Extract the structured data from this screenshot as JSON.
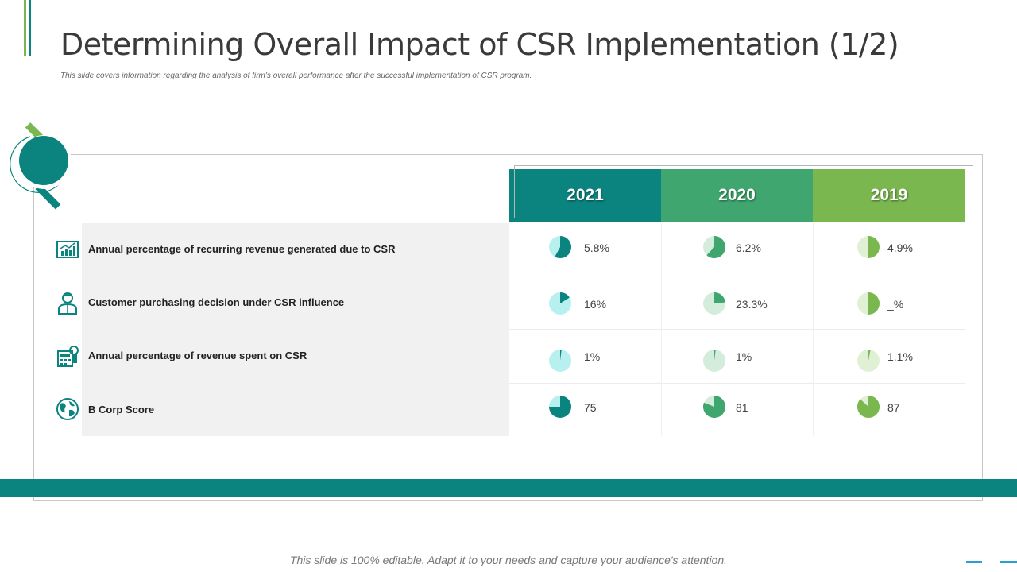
{
  "header": {
    "title": "Determining Overall Impact of CSR Implementation (1/2)",
    "subtitle": "This slide covers information regarding the analysis of firm’s overall performance after the successful implementation of CSR program."
  },
  "colors": {
    "teal": "#0b847f",
    "green_2020": "#3ea66e",
    "green_2019": "#7ab84f",
    "pie_bg_2021": "#b8f0f0",
    "pie_bg_2020": "#d4ecdc",
    "pie_bg_2019": "#dff0d4"
  },
  "table": {
    "years": [
      "2021",
      "2020",
      "2019"
    ],
    "rows": [
      {
        "icon": "growth-chart-icon",
        "label": "Annual percentage of recurring revenue generated due to CSR",
        "values": [
          "5.8%",
          "6.2%",
          "4.9%"
        ],
        "fill": [
          0.58,
          0.62,
          0.5
        ]
      },
      {
        "icon": "person-icon",
        "label": "Customer purchasing decision under CSR influence",
        "values": [
          "16%",
          "23.3%",
          "_%"
        ],
        "fill": [
          0.16,
          0.233,
          0.5
        ]
      },
      {
        "icon": "calculator-icon",
        "label": "Annual percentage of revenue spent on CSR",
        "values": [
          "1%",
          "1%",
          "1.1%"
        ],
        "fill": [
          0.02,
          0.02,
          0.03
        ]
      },
      {
        "icon": "globe-icon",
        "label": "B Corp Score",
        "values": [
          "75",
          "81",
          "87"
        ],
        "fill": [
          0.75,
          0.81,
          0.87
        ]
      }
    ]
  },
  "footer": {
    "note": "This slide is 100% editable.  Adapt it to your needs and capture your audience's attention."
  }
}
